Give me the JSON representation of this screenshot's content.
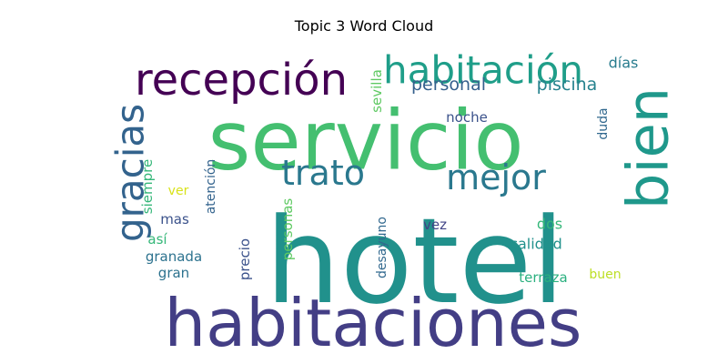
{
  "chart_data": {
    "type": "wordcloud",
    "title": "Topic 3 Word Cloud",
    "words": [
      {
        "text": "hotel",
        "weight": 100,
        "color": "#21918c",
        "orientation": "horizontal"
      },
      {
        "text": "servicio",
        "weight": 68,
        "color": "#44bf70",
        "orientation": "horizontal"
      },
      {
        "text": "habitaciones",
        "weight": 52,
        "color": "#433e85",
        "orientation": "horizontal"
      },
      {
        "text": "bien",
        "weight": 46,
        "color": "#1f988b",
        "orientation": "vertical"
      },
      {
        "text": "recepción",
        "weight": 32,
        "color": "#440154",
        "orientation": "horizontal"
      },
      {
        "text": "habitación",
        "weight": 30,
        "color": "#1f9e89",
        "orientation": "horizontal"
      },
      {
        "text": "gracias",
        "weight": 30,
        "color": "#33638d",
        "orientation": "vertical"
      },
      {
        "text": "trato",
        "weight": 25,
        "color": "#2a788e",
        "orientation": "horizontal"
      },
      {
        "text": "mejor",
        "weight": 25,
        "color": "#2a788e",
        "orientation": "horizontal"
      },
      {
        "text": "personal",
        "weight": 13,
        "color": "#35608d",
        "orientation": "horizontal"
      },
      {
        "text": "piscina",
        "weight": 13,
        "color": "#26828e",
        "orientation": "horizontal"
      },
      {
        "text": "días",
        "weight": 11,
        "color": "#287c8e",
        "orientation": "horizontal"
      },
      {
        "text": "sevilla",
        "weight": 10,
        "color": "#5ec962",
        "orientation": "vertical"
      },
      {
        "text": "noche",
        "weight": 10,
        "color": "#3b528b",
        "orientation": "horizontal"
      },
      {
        "text": "duda",
        "weight": 9,
        "color": "#31688e",
        "orientation": "vertical"
      },
      {
        "text": "siempre",
        "weight": 10,
        "color": "#35b779",
        "orientation": "vertical"
      },
      {
        "text": "atención",
        "weight": 9,
        "color": "#33638d",
        "orientation": "vertical"
      },
      {
        "text": "ver",
        "weight": 9,
        "color": "#d8e219",
        "orientation": "horizontal"
      },
      {
        "text": "mas",
        "weight": 10,
        "color": "#3b528b",
        "orientation": "horizontal"
      },
      {
        "text": "personas",
        "weight": 10,
        "color": "#5ec962",
        "orientation": "vertical"
      },
      {
        "text": "vez",
        "weight": 10,
        "color": "#414487",
        "orientation": "horizontal"
      },
      {
        "text": "dos",
        "weight": 10,
        "color": "#35b779",
        "orientation": "horizontal"
      },
      {
        "text": "así",
        "weight": 10,
        "color": "#35b779",
        "orientation": "horizontal"
      },
      {
        "text": "desayuno",
        "weight": 9,
        "color": "#31688e",
        "orientation": "vertical"
      },
      {
        "text": "calidad",
        "weight": 11,
        "color": "#21918c",
        "orientation": "horizontal"
      },
      {
        "text": "precio",
        "weight": 10,
        "color": "#3b528b",
        "orientation": "vertical"
      },
      {
        "text": "granada",
        "weight": 10,
        "color": "#2c728e",
        "orientation": "horizontal"
      },
      {
        "text": "gran",
        "weight": 10,
        "color": "#2c728e",
        "orientation": "horizontal"
      },
      {
        "text": "terraza",
        "weight": 10,
        "color": "#2ab07f",
        "orientation": "horizontal"
      },
      {
        "text": "buen",
        "weight": 9,
        "color": "#bddf26",
        "orientation": "horizontal"
      }
    ]
  }
}
